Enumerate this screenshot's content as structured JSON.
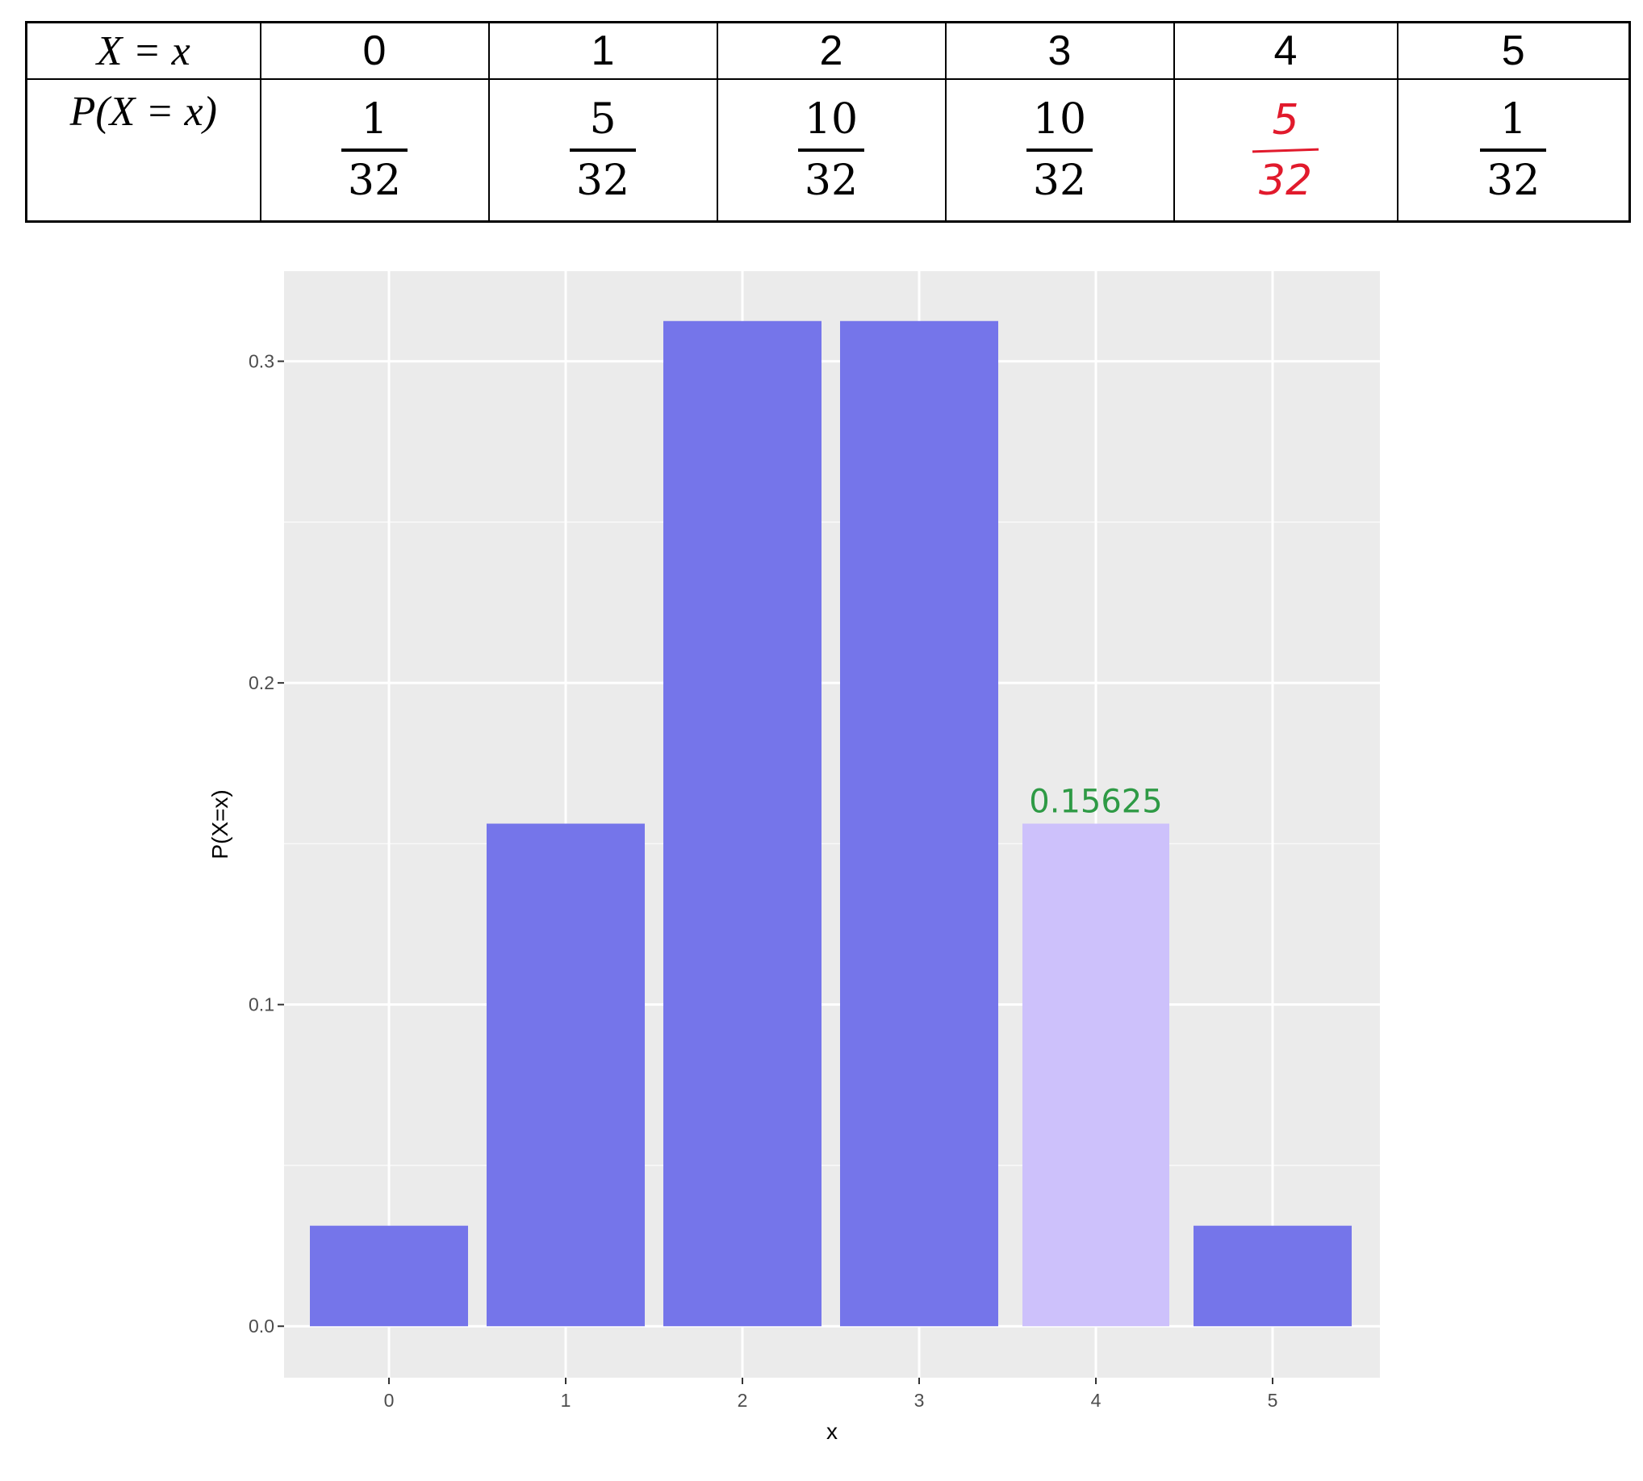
{
  "table": {
    "row_labels": [
      "X = x",
      "P(X = x)"
    ],
    "columns": [
      {
        "x": "0",
        "num": "1",
        "den": "32",
        "handwritten": false
      },
      {
        "x": "1",
        "num": "5",
        "den": "32",
        "handwritten": false
      },
      {
        "x": "2",
        "num": "10",
        "den": "32",
        "handwritten": false
      },
      {
        "x": "3",
        "num": "10",
        "den": "32",
        "handwritten": false
      },
      {
        "x": "4",
        "num": "5",
        "den": "32",
        "handwritten": true
      },
      {
        "x": "5",
        "num": "1",
        "den": "32",
        "handwritten": false
      }
    ]
  },
  "chart_data": {
    "type": "bar",
    "categories": [
      "0",
      "1",
      "2",
      "3",
      "4",
      "5"
    ],
    "values": [
      0.03125,
      0.15625,
      0.3125,
      0.3125,
      0.15625,
      0.03125
    ],
    "highlight_index": 4,
    "annotation": "0.15625",
    "xlabel": "x",
    "ylabel": "P(X=x)",
    "yticks": [
      "0.0",
      "0.1",
      "0.2",
      "0.3"
    ],
    "ytick_values": [
      0.0,
      0.1,
      0.2,
      0.3
    ],
    "ylim": [
      -0.016,
      0.328
    ],
    "grid": true,
    "colors": {
      "bar": "#7575ea",
      "highlight_bar": "#cdc1fb",
      "panel": "#ebebeb",
      "grid": "#ffffff",
      "annotation": "#2e9a45",
      "axis_text": "#4d4d4d"
    }
  }
}
